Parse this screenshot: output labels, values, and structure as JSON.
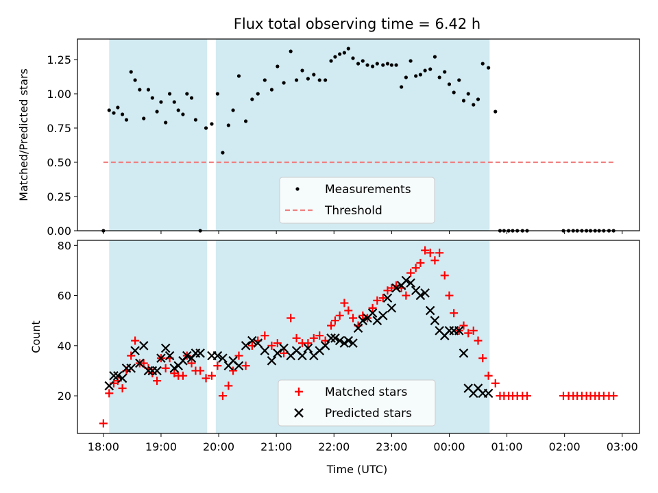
{
  "title": "Flux total observing time = 6.42 h",
  "colors": {
    "shade": "#add8e6",
    "measurement": "#000000",
    "threshold": "#f08080",
    "matched": "#ff0000",
    "predicted": "#000000"
  },
  "x_ticks": [
    "18:00",
    "19:00",
    "20:00",
    "21:00",
    "22:00",
    "23:00",
    "00:00",
    "01:00",
    "02:00",
    "03:00"
  ],
  "chart_data": [
    {
      "type": "scatter",
      "ylabel": "Matched/Predicted stars",
      "xlabel": "",
      "xlim_hours": [
        17.55,
        27.3
      ],
      "ylim": [
        0,
        1.4
      ],
      "yticks": [
        "0.00",
        "0.25",
        "0.50",
        "0.75",
        "1.00",
        "1.25"
      ],
      "shaded_intervals_hours": [
        [
          18.1,
          19.8
        ],
        [
          19.95,
          24.7
        ]
      ],
      "legend": {
        "measurements": "Measurements",
        "threshold": "Threshold"
      },
      "threshold": {
        "value": 0.5,
        "x_hours": [
          18.0,
          26.85
        ]
      },
      "measurements": {
        "x_hours": [
          18.0,
          18.1,
          18.18,
          18.25,
          18.33,
          18.4,
          18.48,
          18.55,
          18.63,
          18.7,
          18.78,
          18.85,
          18.93,
          19.0,
          19.08,
          19.15,
          19.23,
          19.3,
          19.38,
          19.45,
          19.53,
          19.6,
          19.68,
          19.78,
          19.88,
          19.98,
          20.07,
          20.17,
          20.25,
          20.35,
          20.47,
          20.58,
          20.68,
          20.8,
          20.92,
          21.02,
          21.13,
          21.25,
          21.35,
          21.45,
          21.55,
          21.65,
          21.75,
          21.85,
          21.95,
          22.02,
          22.1,
          22.18,
          22.25,
          22.33,
          22.42,
          22.5,
          22.58,
          22.67,
          22.75,
          22.85,
          22.93,
          23.0,
          23.08,
          23.17,
          23.25,
          23.33,
          23.42,
          23.5,
          23.58,
          23.67,
          23.75,
          23.83,
          23.92,
          24.0,
          24.08,
          24.17,
          24.25,
          24.33,
          24.42,
          24.5,
          24.58,
          24.68,
          24.8,
          24.88,
          24.95,
          25.03,
          25.1,
          25.18,
          25.27,
          25.35,
          25.98,
          26.07,
          26.15,
          26.22,
          26.3,
          26.38,
          26.45,
          26.53,
          26.6,
          26.68,
          26.77,
          26.85
        ],
        "y": [
          0.0,
          0.88,
          0.86,
          0.9,
          0.85,
          0.81,
          1.16,
          1.1,
          1.03,
          0.82,
          1.03,
          0.97,
          0.87,
          0.94,
          0.79,
          1.0,
          0.94,
          0.88,
          0.85,
          1.0,
          0.97,
          0.81,
          0.0,
          0.75,
          0.78,
          1.0,
          0.57,
          0.77,
          0.88,
          1.13,
          0.8,
          0.96,
          1.0,
          1.1,
          1.03,
          1.2,
          1.08,
          1.31,
          1.1,
          1.17,
          1.11,
          1.14,
          1.1,
          1.1,
          1.24,
          1.27,
          1.29,
          1.3,
          1.33,
          1.26,
          1.22,
          1.24,
          1.21,
          1.2,
          1.22,
          1.21,
          1.22,
          1.21,
          1.21,
          1.05,
          1.12,
          1.24,
          1.13,
          1.14,
          1.17,
          1.18,
          1.27,
          1.12,
          1.16,
          1.07,
          1.01,
          1.1,
          0.95,
          1.0,
          0.92,
          0.96,
          1.22,
          1.19,
          0.87,
          0.0,
          0.0,
          0.0,
          0.0,
          0.0,
          0.0,
          0.0,
          0.0,
          0.0,
          0.0,
          0.0,
          0.0,
          0.0,
          0.0,
          0.0,
          0.0,
          0.0,
          0.0,
          0.0
        ]
      }
    },
    {
      "type": "scatter",
      "xlabel": "Time (UTC)",
      "ylabel": "Count",
      "xlim_hours": [
        17.55,
        27.3
      ],
      "ylim": [
        5,
        82
      ],
      "yticks": [
        "20",
        "40",
        "60",
        "80"
      ],
      "shaded_intervals_hours": [
        [
          18.1,
          19.8
        ],
        [
          19.95,
          24.7
        ]
      ],
      "legend": {
        "matched": "Matched stars",
        "predicted": "Predicted stars"
      },
      "series": [
        {
          "name": "Matched stars",
          "x_hours": [
            18.0,
            18.1,
            18.18,
            18.25,
            18.33,
            18.4,
            18.48,
            18.55,
            18.63,
            18.7,
            18.78,
            18.85,
            18.93,
            19.0,
            19.08,
            19.15,
            19.23,
            19.3,
            19.38,
            19.45,
            19.53,
            19.6,
            19.68,
            19.78,
            19.88,
            19.98,
            20.07,
            20.17,
            20.25,
            20.35,
            20.47,
            20.58,
            20.68,
            20.8,
            20.92,
            21.02,
            21.13,
            21.25,
            21.35,
            21.45,
            21.55,
            21.65,
            21.75,
            21.85,
            21.95,
            22.02,
            22.1,
            22.18,
            22.25,
            22.33,
            22.42,
            22.5,
            22.58,
            22.67,
            22.75,
            22.85,
            22.93,
            23.0,
            23.08,
            23.17,
            23.25,
            23.33,
            23.42,
            23.5,
            23.58,
            23.67,
            23.75,
            23.83,
            23.92,
            24.0,
            24.08,
            24.17,
            24.25,
            24.33,
            24.42,
            24.5,
            24.58,
            24.68,
            24.8,
            24.88,
            24.95,
            25.03,
            25.1,
            25.18,
            25.27,
            25.35,
            25.98,
            26.07,
            26.15,
            26.22,
            26.3,
            26.38,
            26.45,
            26.53,
            26.6,
            26.68,
            26.77,
            26.85
          ],
          "y": [
            9,
            21,
            25,
            26,
            23,
            30,
            36,
            42,
            33,
            33,
            31,
            29,
            26,
            35,
            31,
            35,
            29,
            28,
            28,
            36,
            33,
            30,
            30,
            27,
            28,
            32,
            20,
            24,
            30,
            36,
            32,
            40,
            42,
            44,
            40,
            41,
            37,
            51,
            43,
            41,
            41,
            43,
            44,
            42,
            48,
            50,
            52,
            57,
            54,
            51,
            48,
            52,
            51,
            55,
            58,
            59,
            62,
            63,
            64,
            63,
            60,
            69,
            71,
            73,
            78,
            77,
            74,
            77,
            68,
            60,
            53,
            46,
            48,
            45,
            46,
            42,
            35,
            28,
            25,
            20,
            20,
            20,
            20,
            20,
            20,
            20,
            20,
            20,
            20,
            20,
            20,
            20,
            20,
            20,
            20,
            20,
            20,
            20
          ]
        },
        {
          "name": "Predicted stars",
          "x_hours": [
            18.1,
            18.18,
            18.25,
            18.33,
            18.4,
            18.48,
            18.55,
            18.63,
            18.7,
            18.78,
            18.85,
            18.93,
            19.0,
            19.08,
            19.15,
            19.23,
            19.3,
            19.38,
            19.45,
            19.53,
            19.6,
            19.68,
            19.88,
            19.98,
            20.07,
            20.17,
            20.25,
            20.35,
            20.47,
            20.58,
            20.68,
            20.8,
            20.92,
            21.02,
            21.13,
            21.25,
            21.35,
            21.45,
            21.55,
            21.65,
            21.75,
            21.85,
            21.95,
            22.02,
            22.1,
            22.18,
            22.25,
            22.33,
            22.42,
            22.5,
            22.58,
            22.67,
            22.75,
            22.85,
            22.93,
            23.0,
            23.08,
            23.17,
            23.25,
            23.33,
            23.42,
            23.5,
            23.58,
            23.67,
            23.75,
            23.83,
            23.92,
            24.0,
            24.08,
            24.17,
            24.25,
            24.33,
            24.42,
            24.5,
            24.58,
            24.68
          ],
          "y": [
            24,
            28,
            28,
            27,
            31,
            31,
            38,
            33,
            40,
            30,
            30,
            30,
            35,
            39,
            36,
            31,
            32,
            34,
            36,
            35,
            37,
            37,
            36,
            36,
            35,
            32,
            34,
            32,
            40,
            42,
            41,
            38,
            34,
            37,
            39,
            36,
            38,
            36,
            39,
            36,
            38,
            40,
            43,
            43,
            42,
            41,
            42,
            41,
            47,
            50,
            51,
            53,
            50,
            52,
            59,
            55,
            63,
            64,
            66,
            65,
            62,
            60,
            61,
            54,
            50,
            46,
            44,
            46,
            46,
            46,
            37,
            23,
            21,
            23,
            21,
            21
          ]
        }
      ]
    }
  ]
}
